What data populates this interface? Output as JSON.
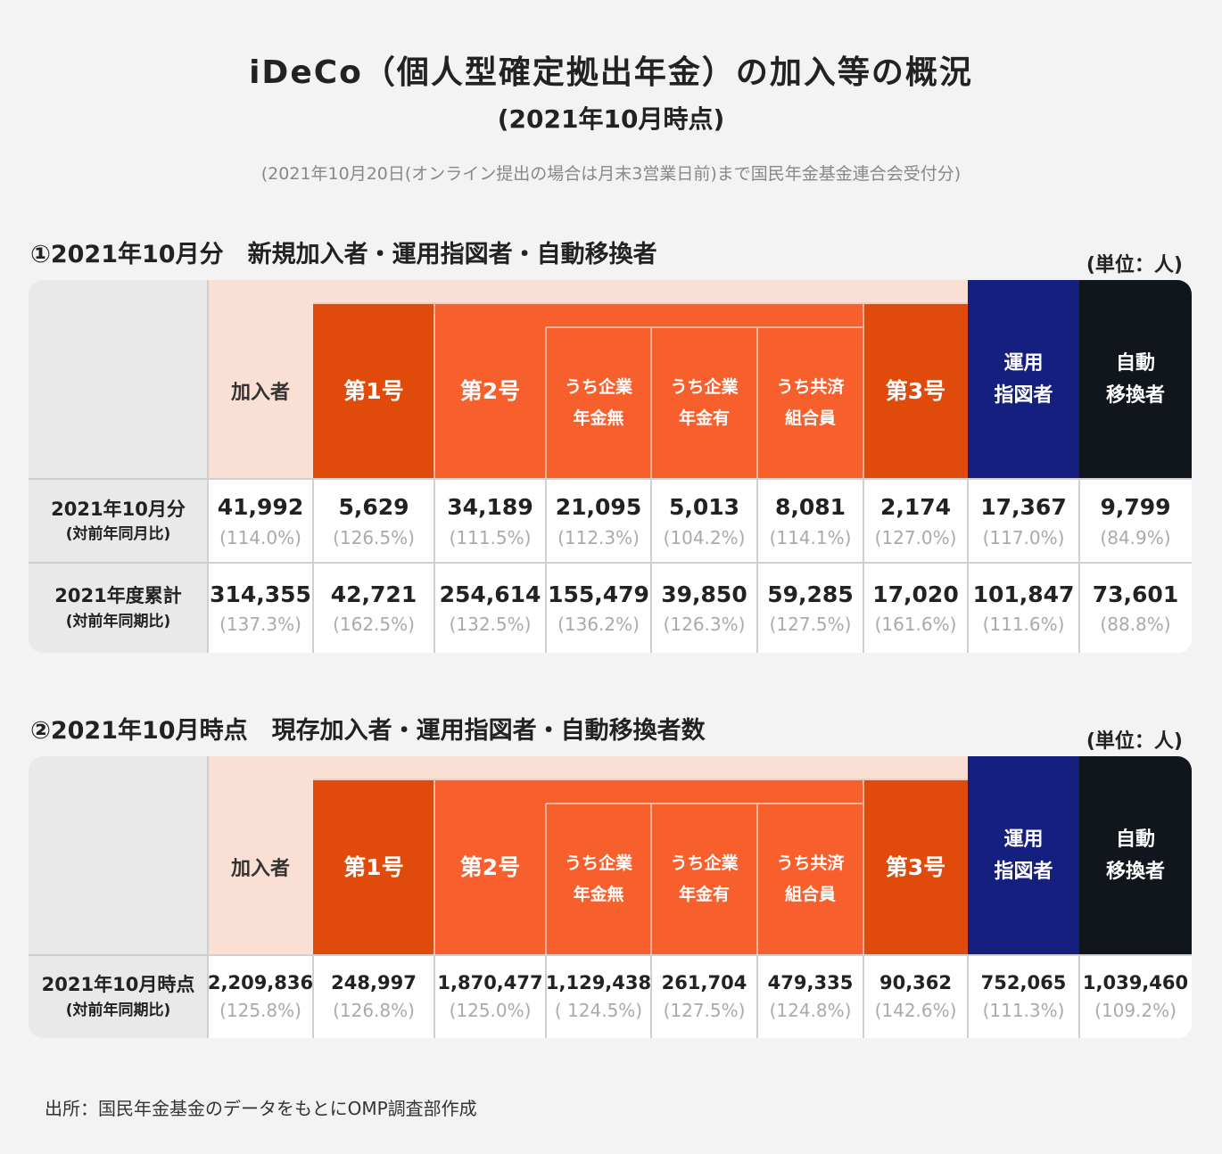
{
  "title": "iDeCo（個人型確定拠出年金）の加入等の概況",
  "subtitle": "(2021年10月時点)",
  "note": "(2021年10月20日(オンライン提出の場合は月末3営業日前)まで国民年金基金連合会受付分)",
  "headers": {
    "kanyusha": "加入者",
    "dai1": "第1号",
    "dai2": "第2号",
    "nashi_1": "うち企業",
    "nashi_2": "年金無",
    "ari_1": "うち企業",
    "ari_2": "年金有",
    "kyosai_1": "うち共済",
    "kyosai_2": "組合員",
    "dai3": "第3号",
    "unyo_1": "運用",
    "unyo_2": "指図者",
    "jido_1": "自動",
    "jido_2": "移換者"
  },
  "section1": {
    "heading": "①2021年10月分　新規加入者・運用指図者・自動移換者",
    "unit": "(単位：人)",
    "rows": [
      {
        "label": "2021年10月分",
        "sublabel": "(対前年同月比)",
        "values": [
          "41,992",
          "5,629",
          "34,189",
          "21,095",
          "5,013",
          "8,081",
          "2,174",
          "17,367",
          "9,799"
        ],
        "ratios": [
          "(114.0%)",
          "(126.5%)",
          "(111.5%)",
          "(112.3%)",
          "(104.2%)",
          "(114.1%)",
          "(127.0%)",
          "(117.0%)",
          "(84.9%)"
        ]
      },
      {
        "label": "2021年度累計",
        "sublabel": "(対前年同期比)",
        "values": [
          "314,355",
          "42,721",
          "254,614",
          "155,479",
          "39,850",
          "59,285",
          "17,020",
          "101,847",
          "73,601"
        ],
        "ratios": [
          "(137.3%)",
          "(162.5%)",
          "(132.5%)",
          "(136.2%)",
          "(126.3%)",
          "(127.5%)",
          "(161.6%)",
          "(111.6%)",
          "(88.8%)"
        ]
      }
    ]
  },
  "section2": {
    "heading": "②2021年10月時点　現存加入者・運用指図者・自動移換者数",
    "unit": "(単位：人)",
    "rows": [
      {
        "label": "2021年10月時点",
        "sublabel": "(対前年同期比)",
        "values": [
          "2,209,836",
          "248,997",
          "1,870,477",
          "1,129,438",
          "261,704",
          "479,335",
          "90,362",
          "752,065",
          "1,039,460"
        ],
        "ratios": [
          "(125.8%)",
          "(126.8%)",
          "(125.0%)",
          "( 124.5%)",
          "(127.5%)",
          "(124.8%)",
          "(142.6%)",
          "(111.3%)",
          "(109.2%)"
        ]
      }
    ]
  },
  "footer": "出所：国民年金基金のデータをもとにOMP調査部作成",
  "colors": {
    "pale": "#fadfd4",
    "orange_dark": "#e04b0c",
    "orange": "#f75f2d",
    "navy": "#141f80",
    "black": "#11161d",
    "gray": "#e9e9e9"
  }
}
